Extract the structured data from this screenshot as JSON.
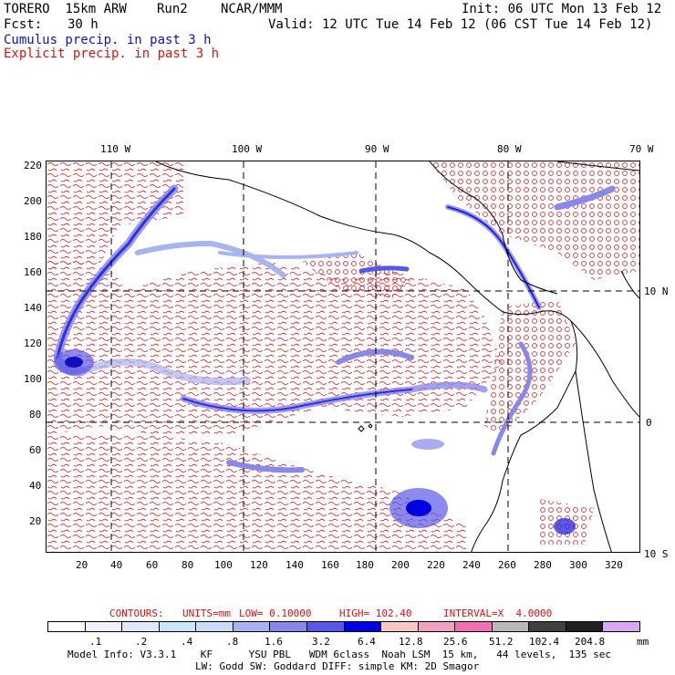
{
  "header": {
    "model": "TORERO  15km ARW",
    "run": "Run2",
    "org": "NCAR/MMM",
    "init": "Init: 06 UTC Mon 13 Feb 12",
    "fcst_label": "Fcst:",
    "fcst_value": "30 h",
    "valid": "Valid: 12 UTC Tue 14 Feb 12 (06 CST Tue 14 Feb 12)",
    "field1": "Cumulus precip. in past 3 h",
    "field2": "Explicit precip. in past 3 h"
  },
  "colors": {
    "field1": "#1010c0",
    "field2": "#e01010",
    "grid": "#000000"
  },
  "map": {
    "lon_labels": [
      "110 W",
      "100 W",
      "90 W",
      "80 W",
      "70 W"
    ],
    "lat_labels": [
      "10 N",
      "0",
      "10 S"
    ],
    "y_ticks": [
      "220",
      "200",
      "180",
      "160",
      "140",
      "120",
      "100",
      "80",
      "60",
      "40",
      "20"
    ],
    "x_ticks": [
      "20",
      "40",
      "60",
      "80",
      "100",
      "120",
      "140",
      "160",
      "180",
      "200",
      "220",
      "240",
      "260",
      "280",
      "300",
      "320"
    ]
  },
  "contours": {
    "label": "CONTOURS:",
    "units": "UNITS=mm",
    "low": "LOW= 0.10000",
    "high": "HIGH= 102.40",
    "interval": "INTERVAL=X  4.0000"
  },
  "legend": {
    "colors": [
      "#ffffff",
      "#f0f0ff",
      "#e0e8ff",
      "#c8e8f8",
      "#c8dcf8",
      "#a8b4f0",
      "#8888e8",
      "#5858e8",
      "#0000e0",
      "#f8c8c8",
      "#f0a0c0",
      "#f070b0",
      "#b8b8b8",
      "#404040",
      "#202020",
      "#d8a8f0"
    ],
    "labels": [
      ".1",
      ".2",
      ".4",
      ".8",
      "1.6",
      "3.2",
      "6.4",
      "12.8",
      "25.6",
      "51.2",
      "102.4",
      "204.8"
    ],
    "unit": "mm"
  },
  "footer": {
    "line1": "Model Info: V3.3.1    KF      YSU PBL   WDM 6class  Noah LSM  15 km,   44 levels,  135 sec",
    "line2": "LW: Godd SW: Goddard DIFF: simple KM: 2D Smagor"
  }
}
